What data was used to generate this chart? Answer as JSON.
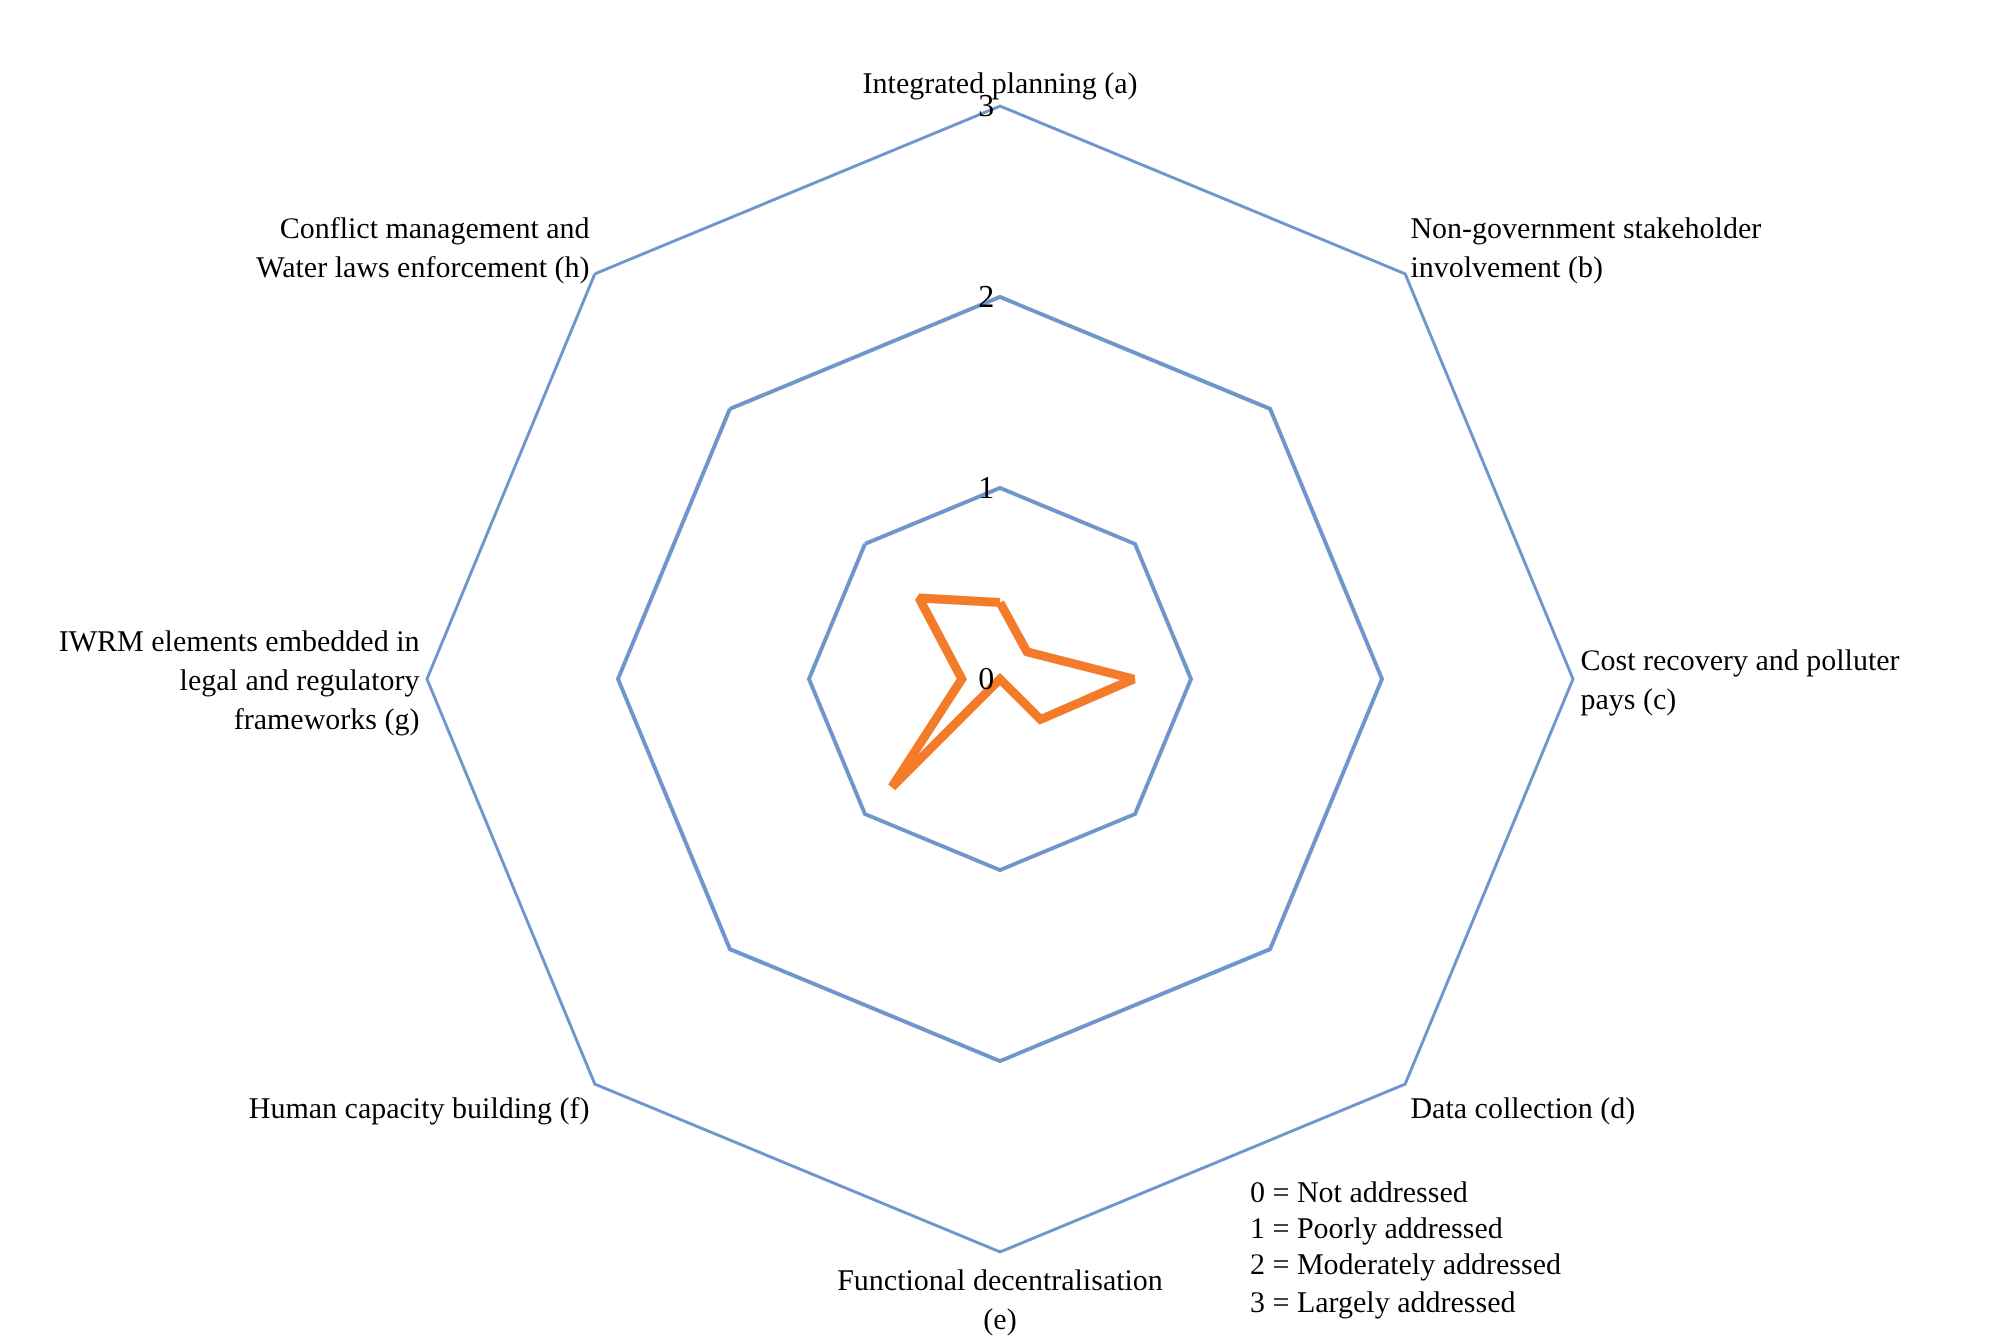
{
  "chart_data": {
    "type": "radar",
    "categories": [
      "Integrated planning (a)",
      "Non-government stakeholder involvement (b)",
      "Cost recovery and polluter pays (c)",
      "Data collection (d)",
      "Functional decentralisation (e)",
      "Human capacity building (f)",
      "IWRM elements embedded in legal and regulatory frameworks (g)",
      "Conflict management and Water laws enforcement (h)"
    ],
    "series": [
      {
        "color": "#f47b2a",
        "values": [
          0.4,
          0.2,
          0.7,
          0.3,
          0,
          0.8,
          0.2,
          0.6
        ]
      }
    ],
    "ylim": [
      0,
      3
    ],
    "yticks": [
      0,
      1,
      2,
      3
    ],
    "grid": true,
    "marker": "none",
    "line_style": "solid",
    "annotations": [
      "0 = Not addressed",
      "1 = Poorly addressed",
      "2 = Moderately addressed",
      "3 = Largely addressed"
    ]
  }
}
